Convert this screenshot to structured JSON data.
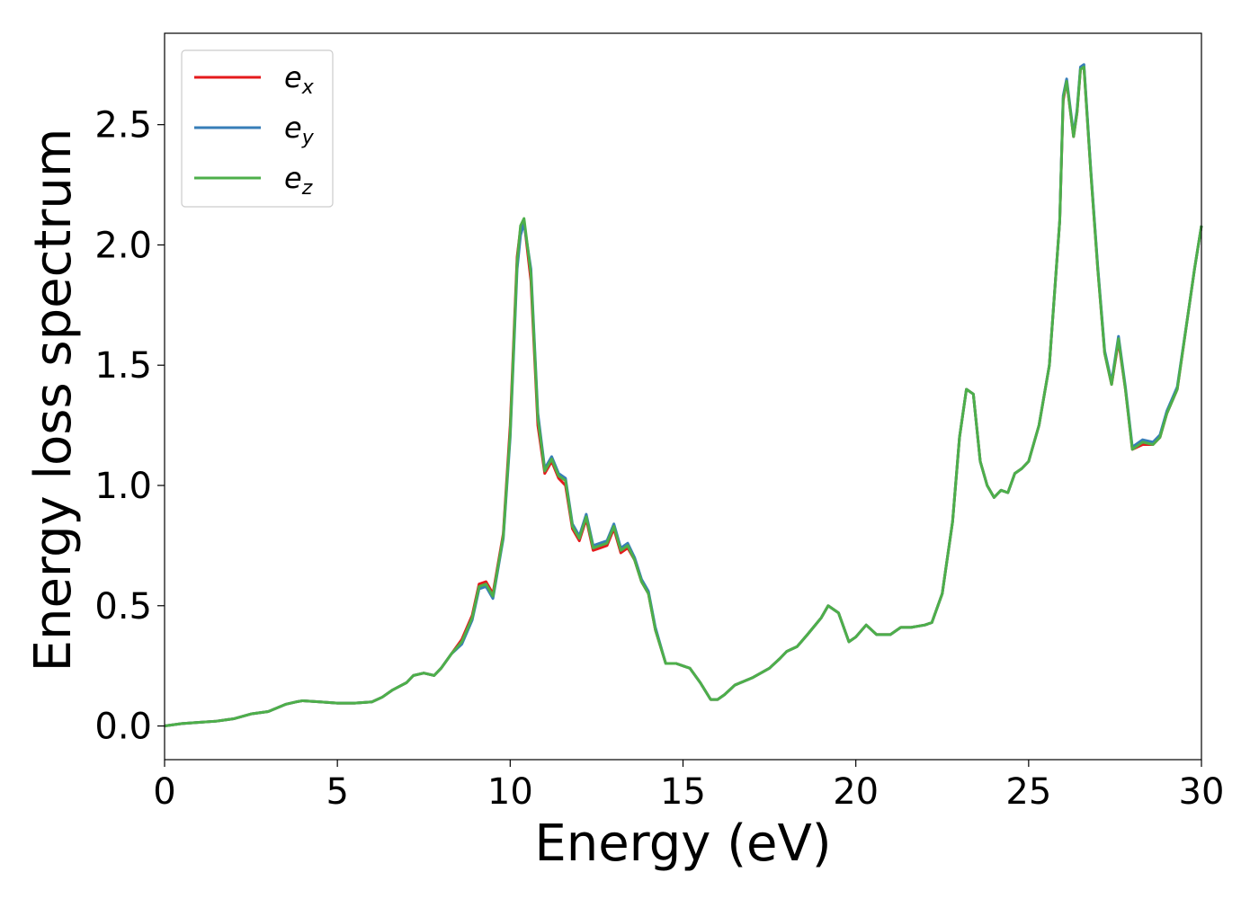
{
  "chart_data": {
    "type": "line",
    "title": "",
    "xlabel": "Energy (eV)",
    "ylabel": "Energy loss spectrum",
    "xlim": [
      0,
      30
    ],
    "ylim": [
      -0.14,
      2.88
    ],
    "xticks": [
      0,
      5,
      10,
      15,
      20,
      25,
      30
    ],
    "xtick_labels": [
      "0",
      "5",
      "10",
      "15",
      "20",
      "25",
      "30"
    ],
    "yticks": [
      0.0,
      0.5,
      1.0,
      1.5,
      2.0,
      2.5
    ],
    "ytick_labels": [
      "0.0",
      "0.5",
      "1.0",
      "1.5",
      "2.0",
      "2.5"
    ],
    "grid": false,
    "legend_position": "top-left",
    "x": [
      0,
      0.5,
      1,
      1.5,
      2,
      2.5,
      3,
      3.5,
      3.8,
      4,
      4.5,
      5,
      5.5,
      6,
      6.3,
      6.6,
      7,
      7.2,
      7.5,
      7.8,
      8,
      8.3,
      8.6,
      8.9,
      9.1,
      9.3,
      9.5,
      9.8,
      10,
      10.2,
      10.3,
      10.4,
      10.6,
      10.8,
      11,
      11.2,
      11.4,
      11.6,
      11.8,
      12,
      12.2,
      12.4,
      12.6,
      12.8,
      13,
      13.2,
      13.4,
      13.6,
      13.8,
      14,
      14.2,
      14.5,
      14.8,
      15,
      15.2,
      15.5,
      15.8,
      16,
      16.2,
      16.5,
      17,
      17.5,
      17.8,
      18,
      18.3,
      18.6,
      19,
      19.2,
      19.5,
      19.8,
      20,
      20.3,
      20.6,
      21,
      21.3,
      21.6,
      22,
      22.2,
      22.5,
      22.8,
      23,
      23.2,
      23.4,
      23.6,
      23.8,
      24,
      24.2,
      24.4,
      24.6,
      24.8,
      25,
      25.3,
      25.6,
      25.9,
      26,
      26.1,
      26.3,
      26.4,
      26.5,
      26.6,
      26.8,
      27,
      27.2,
      27.4,
      27.6,
      27.8,
      28,
      28.3,
      28.6,
      28.8,
      29,
      29.3,
      29.6,
      29.8,
      30
    ],
    "series": [
      {
        "name": "x",
        "color": "#e41a1c",
        "values": [
          0,
          0.01,
          0.015,
          0.02,
          0.03,
          0.05,
          0.06,
          0.09,
          0.1,
          0.105,
          0.1,
          0.095,
          0.095,
          0.1,
          0.12,
          0.15,
          0.18,
          0.21,
          0.22,
          0.21,
          0.24,
          0.3,
          0.36,
          0.46,
          0.59,
          0.6,
          0.55,
          0.8,
          1.25,
          1.95,
          2.07,
          2.1,
          1.85,
          1.25,
          1.05,
          1.1,
          1.03,
          1.0,
          0.82,
          0.77,
          0.86,
          0.73,
          0.74,
          0.75,
          0.82,
          0.72,
          0.74,
          0.69,
          0.6,
          0.55,
          0.4,
          0.26,
          0.26,
          0.25,
          0.24,
          0.18,
          0.11,
          0.11,
          0.13,
          0.17,
          0.2,
          0.24,
          0.28,
          0.31,
          0.33,
          0.38,
          0.45,
          0.5,
          0.47,
          0.35,
          0.37,
          0.42,
          0.38,
          0.38,
          0.41,
          0.41,
          0.42,
          0.43,
          0.55,
          0.85,
          1.2,
          1.4,
          1.38,
          1.1,
          1.0,
          0.95,
          0.98,
          0.97,
          1.05,
          1.07,
          1.1,
          1.25,
          1.5,
          2.1,
          2.6,
          2.68,
          2.45,
          2.55,
          2.73,
          2.74,
          2.3,
          1.9,
          1.55,
          1.42,
          1.6,
          1.4,
          1.15,
          1.17,
          1.17,
          1.2,
          1.3,
          1.4,
          1.7,
          1.9,
          2.08
        ]
      },
      {
        "name": "y",
        "color": "#377eb8",
        "values": [
          0,
          0.01,
          0.015,
          0.02,
          0.03,
          0.05,
          0.06,
          0.09,
          0.1,
          0.105,
          0.1,
          0.095,
          0.095,
          0.1,
          0.12,
          0.15,
          0.18,
          0.21,
          0.22,
          0.21,
          0.24,
          0.3,
          0.34,
          0.44,
          0.57,
          0.58,
          0.53,
          0.78,
          1.2,
          1.9,
          2.04,
          2.09,
          1.9,
          1.3,
          1.07,
          1.12,
          1.05,
          1.03,
          0.84,
          0.79,
          0.88,
          0.75,
          0.76,
          0.77,
          0.84,
          0.74,
          0.76,
          0.7,
          0.61,
          0.56,
          0.41,
          0.26,
          0.26,
          0.25,
          0.24,
          0.18,
          0.11,
          0.11,
          0.13,
          0.17,
          0.2,
          0.24,
          0.28,
          0.31,
          0.33,
          0.38,
          0.45,
          0.5,
          0.47,
          0.35,
          0.37,
          0.42,
          0.38,
          0.38,
          0.41,
          0.41,
          0.42,
          0.43,
          0.55,
          0.85,
          1.2,
          1.4,
          1.38,
          1.1,
          1.0,
          0.95,
          0.98,
          0.97,
          1.05,
          1.07,
          1.1,
          1.25,
          1.5,
          2.1,
          2.62,
          2.69,
          2.46,
          2.56,
          2.74,
          2.75,
          2.31,
          1.91,
          1.56,
          1.43,
          1.62,
          1.41,
          1.16,
          1.19,
          1.18,
          1.21,
          1.31,
          1.41,
          1.7,
          1.9,
          2.08
        ]
      },
      {
        "name": "z",
        "color": "#4daf4a",
        "values": [
          0,
          0.01,
          0.015,
          0.02,
          0.03,
          0.05,
          0.06,
          0.09,
          0.1,
          0.105,
          0.1,
          0.095,
          0.095,
          0.1,
          0.12,
          0.15,
          0.18,
          0.21,
          0.22,
          0.21,
          0.24,
          0.3,
          0.35,
          0.45,
          0.58,
          0.59,
          0.54,
          0.79,
          1.22,
          1.93,
          2.08,
          2.11,
          1.88,
          1.28,
          1.06,
          1.11,
          1.04,
          1.02,
          0.83,
          0.78,
          0.87,
          0.74,
          0.75,
          0.76,
          0.83,
          0.73,
          0.75,
          0.69,
          0.6,
          0.55,
          0.4,
          0.26,
          0.26,
          0.25,
          0.24,
          0.18,
          0.11,
          0.11,
          0.13,
          0.17,
          0.2,
          0.24,
          0.28,
          0.31,
          0.33,
          0.38,
          0.45,
          0.5,
          0.47,
          0.35,
          0.37,
          0.42,
          0.38,
          0.38,
          0.41,
          0.41,
          0.42,
          0.43,
          0.55,
          0.85,
          1.2,
          1.4,
          1.38,
          1.1,
          1.0,
          0.95,
          0.98,
          0.97,
          1.05,
          1.07,
          1.1,
          1.25,
          1.5,
          2.1,
          2.61,
          2.68,
          2.45,
          2.55,
          2.73,
          2.74,
          2.3,
          1.9,
          1.55,
          1.42,
          1.61,
          1.4,
          1.15,
          1.18,
          1.17,
          1.2,
          1.3,
          1.4,
          1.7,
          1.9,
          2.08
        ]
      }
    ]
  },
  "legend": {
    "entries": [
      {
        "base": "e",
        "sub": "x",
        "color": "#e41a1c"
      },
      {
        "base": "e",
        "sub": "y",
        "color": "#377eb8"
      },
      {
        "base": "e",
        "sub": "z",
        "color": "#4daf4a"
      }
    ]
  }
}
